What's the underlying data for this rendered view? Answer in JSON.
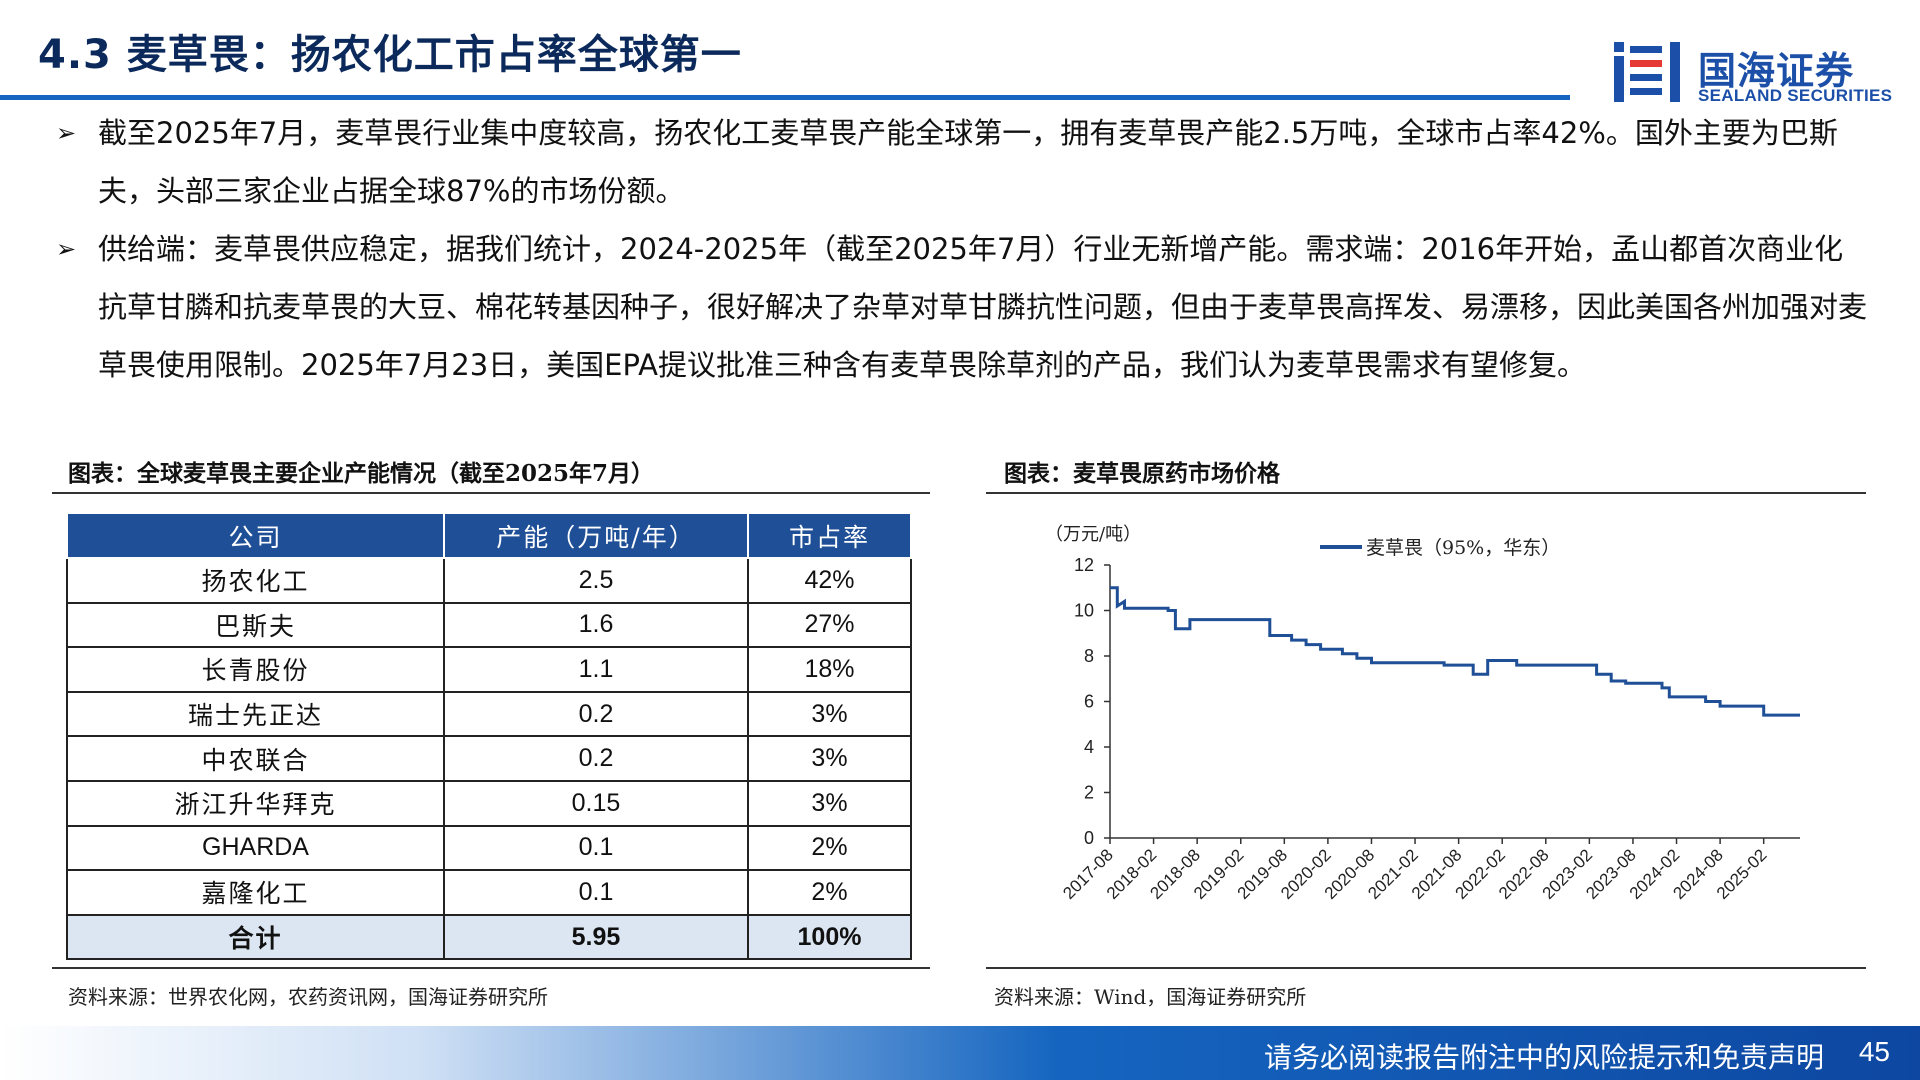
{
  "header": {
    "title": "4.3 麦草畏：扬农化工市占率全球第一"
  },
  "logo": {
    "cn": "国海证券",
    "en": "SEALAND SECURITIES"
  },
  "bullets": [
    "截至2025年7月，麦草畏行业集中度较高，扬农化工麦草畏产能全球第一，拥有麦草畏产能2.5万吨，全球市占率42%。国外主要为巴斯夫，头部三家企业占据全球87%的市场份额。",
    "供给端：麦草畏供应稳定，据我们统计，2024-2025年（截至2025年7月）行业无新增产能。需求端：2016年开始，孟山都首次商业化抗草甘膦和抗麦草畏的大豆、棉花转基因种子，很好解决了杂草对草甘膦抗性问题，但由于麦草畏高挥发、易漂移，因此美国各州加强对麦草畏使用限制。2025年7月23日，美国EPA提议批准三种含有麦草畏除草剂的产品，我们认为麦草畏需求有望修复。"
  ],
  "left_panel": {
    "caption": "图表：全球麦草畏主要企业产能情况（截至2025年7月）",
    "columns": [
      "公司",
      "产能（万吨/年）",
      "市占率"
    ],
    "rows": [
      [
        "扬农化工",
        "2.5",
        "42%"
      ],
      [
        "巴斯夫",
        "1.6",
        "27%"
      ],
      [
        "长青股份",
        "1.1",
        "18%"
      ],
      [
        "瑞士先正达",
        "0.2",
        "3%"
      ],
      [
        "中农联合",
        "0.2",
        "3%"
      ],
      [
        "浙江升华拜克",
        "0.15",
        "3%"
      ],
      [
        "GHARDA",
        "0.1",
        "2%"
      ],
      [
        "嘉隆化工",
        "0.1",
        "2%"
      ]
    ],
    "total": [
      "合计",
      "5.95",
      "100%"
    ],
    "source": "资料来源：世界农化网，农药资讯网，国海证券研究所"
  },
  "right_panel": {
    "caption": "图表：麦草畏原药市场价格",
    "source": "资料来源：Wind，国海证券研究所"
  },
  "chart_data": {
    "type": "line",
    "title": "",
    "ylabel": "（万元/吨）",
    "xlabel": "",
    "ylim": [
      0,
      12
    ],
    "yticks": [
      0,
      2,
      4,
      6,
      8,
      10,
      12
    ],
    "xticks": [
      "2017-08",
      "2018-02",
      "2018-08",
      "2019-02",
      "2019-08",
      "2020-02",
      "2020-08",
      "2021-02",
      "2021-08",
      "2022-02",
      "2022-08",
      "2023-02",
      "2023-08",
      "2024-02",
      "2024-08",
      "2025-02"
    ],
    "xrange": [
      "2017-08",
      "2025-07"
    ],
    "legend": "top-center",
    "grid": false,
    "color": "#1f4f96",
    "series": [
      {
        "name": "麦草畏（95%，华东）",
        "points": [
          [
            "2017-08",
            11.0
          ],
          [
            "2017-09",
            11.0
          ],
          [
            "2017-09",
            10.2
          ],
          [
            "2017-10",
            10.4
          ],
          [
            "2017-10",
            10.1
          ],
          [
            "2018-01",
            10.1
          ],
          [
            "2018-04",
            10.1
          ],
          [
            "2018-04",
            10.0
          ],
          [
            "2018-05",
            10.0
          ],
          [
            "2018-05",
            9.2
          ],
          [
            "2018-07",
            9.2
          ],
          [
            "2018-07",
            9.6
          ],
          [
            "2019-01",
            9.6
          ],
          [
            "2019-06",
            9.6
          ],
          [
            "2019-06",
            8.9
          ],
          [
            "2019-09",
            8.9
          ],
          [
            "2019-09",
            8.7
          ],
          [
            "2019-11",
            8.7
          ],
          [
            "2019-11",
            8.5
          ],
          [
            "2020-01",
            8.5
          ],
          [
            "2020-01",
            8.3
          ],
          [
            "2020-04",
            8.3
          ],
          [
            "2020-04",
            8.1
          ],
          [
            "2020-06",
            8.1
          ],
          [
            "2020-06",
            7.9
          ],
          [
            "2020-08",
            7.9
          ],
          [
            "2020-08",
            7.7
          ],
          [
            "2021-01",
            7.7
          ],
          [
            "2021-06",
            7.7
          ],
          [
            "2021-06",
            7.6
          ],
          [
            "2021-10",
            7.6
          ],
          [
            "2021-10",
            7.2
          ],
          [
            "2021-12",
            7.2
          ],
          [
            "2021-12",
            7.8
          ],
          [
            "2022-04",
            7.8
          ],
          [
            "2022-04",
            7.6
          ],
          [
            "2022-06",
            7.6
          ],
          [
            "2022-12",
            7.6
          ],
          [
            "2023-03",
            7.6
          ],
          [
            "2023-03",
            7.2
          ],
          [
            "2023-05",
            7.2
          ],
          [
            "2023-05",
            6.9
          ],
          [
            "2023-07",
            6.9
          ],
          [
            "2023-07",
            6.8
          ],
          [
            "2023-12",
            6.8
          ],
          [
            "2023-12",
            6.6
          ],
          [
            "2024-01",
            6.6
          ],
          [
            "2024-01",
            6.2
          ],
          [
            "2024-06",
            6.2
          ],
          [
            "2024-06",
            6.0
          ],
          [
            "2024-08",
            6.0
          ],
          [
            "2024-08",
            5.8
          ],
          [
            "2025-02",
            5.8
          ],
          [
            "2025-02",
            5.4
          ],
          [
            "2025-07",
            5.4
          ]
        ]
      }
    ]
  },
  "footer": {
    "disclaimer": "请务必阅读报告附注中的风险提示和免责声明",
    "page": "45"
  }
}
